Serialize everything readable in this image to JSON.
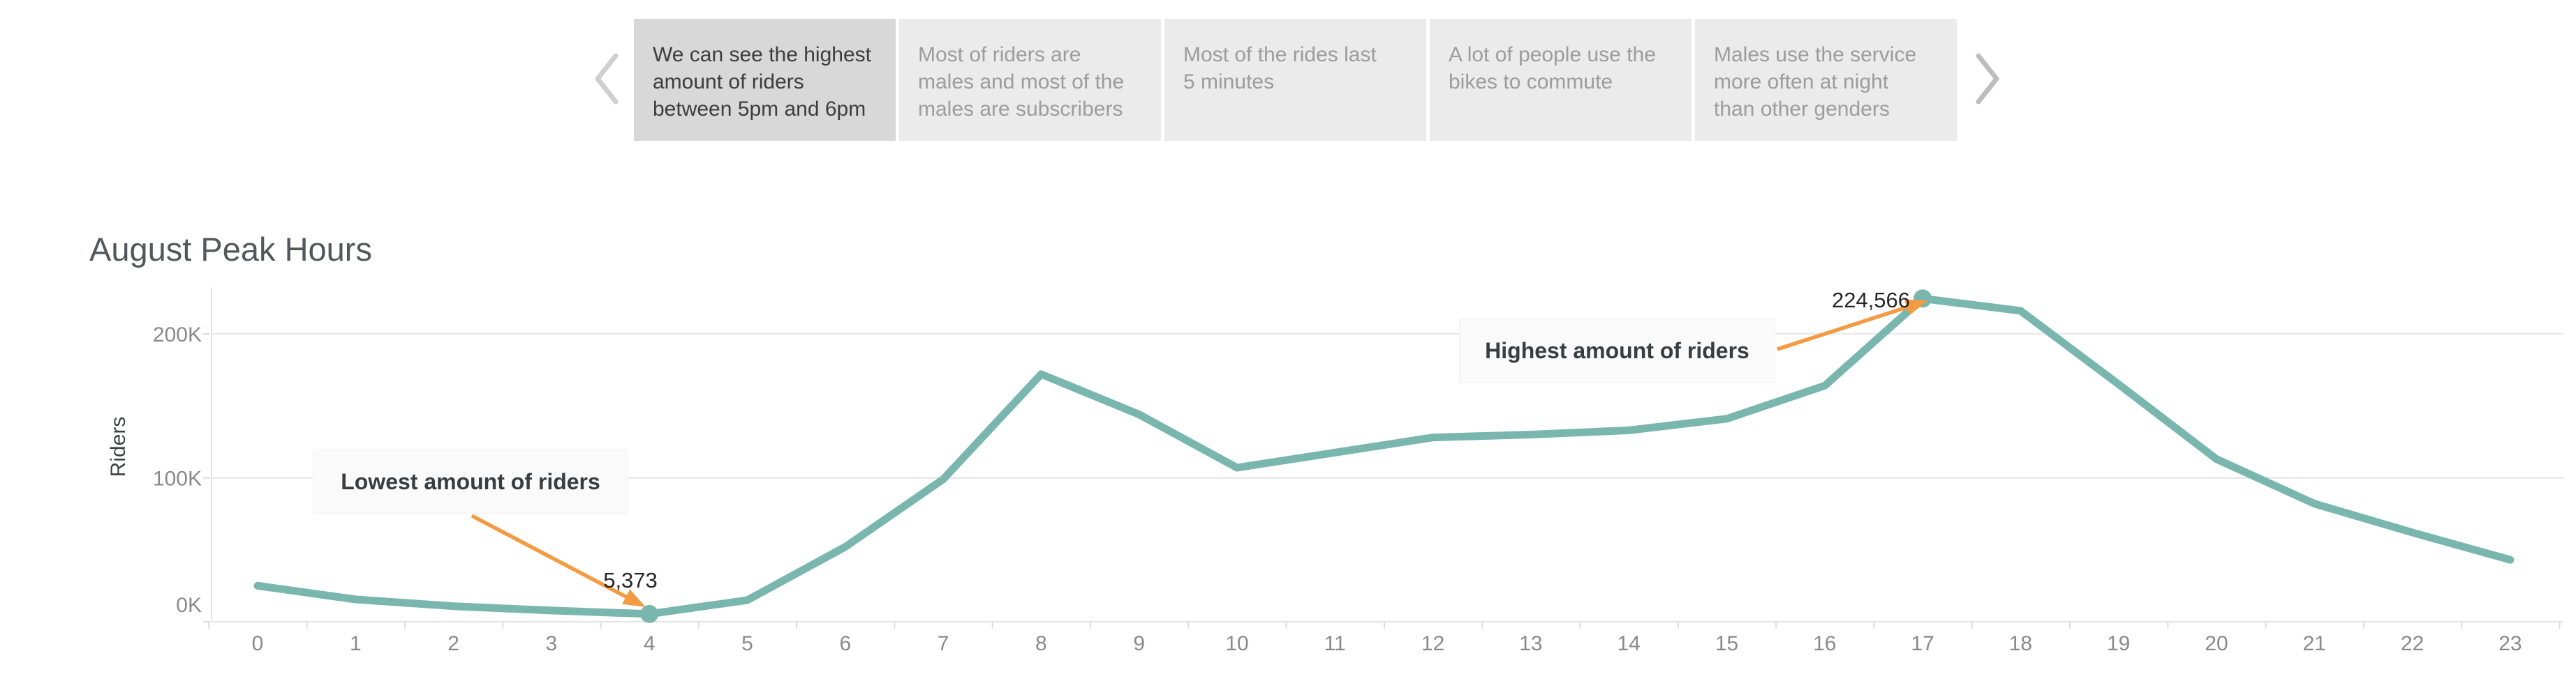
{
  "story_nav": {
    "tabs": [
      {
        "label": "We can see the highest\namount of riders\nbetween 5pm and 6pm",
        "active": true
      },
      {
        "label": "Most of riders are\nmales and most of the\nmales are subscribers",
        "active": false
      },
      {
        "label": "Most of the rides last\n5 minutes",
        "active": false
      },
      {
        "label": "A lot of people use the\nbikes to commute",
        "active": false
      },
      {
        "label": "Males use the service\nmore often at night\nthan other genders",
        "active": false
      }
    ]
  },
  "chart": {
    "title": "August Peak Hours",
    "y_axis_title": "Riders"
  },
  "chart_data": {
    "type": "line",
    "title": "August Peak Hours",
    "xlabel": "",
    "ylabel": "Riders",
    "x": [
      0,
      1,
      2,
      3,
      4,
      5,
      6,
      7,
      8,
      9,
      10,
      11,
      12,
      13,
      14,
      15,
      16,
      17,
      18,
      19,
      20,
      21,
      22,
      23
    ],
    "values": [
      25000,
      15500,
      10800,
      7800,
      5373,
      15000,
      52000,
      99000,
      172000,
      144000,
      107000,
      117500,
      128000,
      130000,
      133000,
      141000,
      164000,
      224566,
      216000,
      165000,
      113000,
      82000,
      62000,
      43000
    ],
    "ylim": [
      0,
      232000
    ],
    "y_tick_values": [
      0,
      100000,
      200000
    ],
    "y_tick_labels": [
      "0K",
      "100K",
      "200K"
    ],
    "grid": true,
    "legend": "none",
    "line_color": "#79b6ae",
    "annotation_color": "#f39b42",
    "annotations": [
      {
        "hour": 4,
        "value": 5373,
        "value_label": "5,373",
        "note": "Lowest amount of riders"
      },
      {
        "hour": 17,
        "value": 224566,
        "value_label": "224,566",
        "note": "Highest amount of riders"
      }
    ]
  }
}
